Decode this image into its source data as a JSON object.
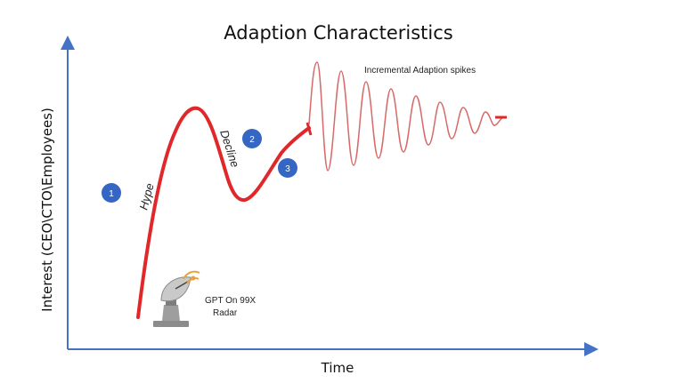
{
  "title": "Adaption Characteristics",
  "axes": {
    "x_label": "Time",
    "y_label": "Interest (CEO\\CTO\\Employees)"
  },
  "phases": {
    "hype": "Hype",
    "decline": "Decline"
  },
  "markers": [
    "1",
    "2",
    "3"
  ],
  "annotations": {
    "spikes": "Incremental Adaption spikes",
    "radar_line1": "GPT On 99X",
    "radar_line2": "Radar"
  },
  "colors": {
    "curve": "#e0282a",
    "spikes": "#d76a6a",
    "badge": "#3566c4",
    "axis": "#4472c4"
  },
  "icons": {
    "radar": "satellite-dish-icon"
  }
}
